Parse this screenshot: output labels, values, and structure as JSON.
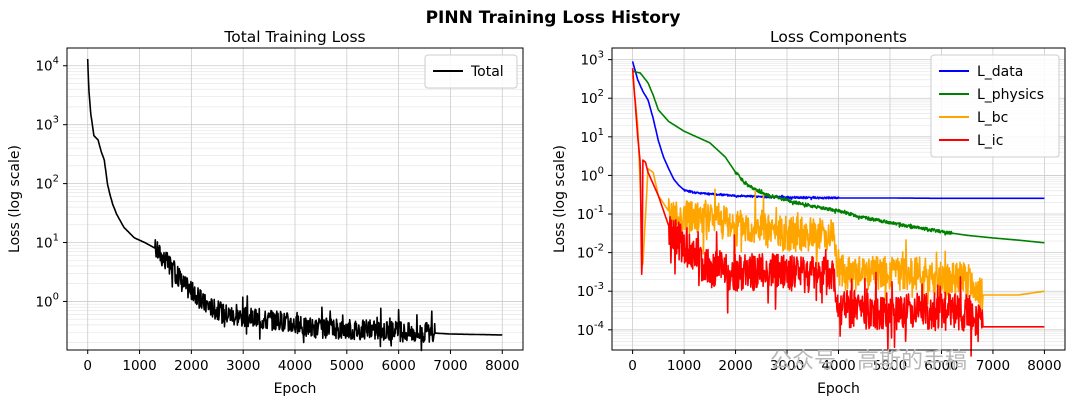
{
  "suptitle": "PINN Training Loss History",
  "watermark": "公众号 · 高斯的手稿",
  "chart_data": [
    {
      "type": "line",
      "title": "Total Training Loss",
      "xlabel": "Epoch",
      "ylabel": "Loss (log scale)",
      "yscale": "log",
      "xlim": [
        -400,
        8400
      ],
      "ylim": [
        0.15,
        20000
      ],
      "xticks": [
        0,
        1000,
        2000,
        3000,
        4000,
        5000,
        6000,
        7000,
        8000
      ],
      "yticks": [
        1,
        10,
        100,
        1000,
        10000
      ],
      "grid": true,
      "legend_position": "upper right",
      "series": [
        {
          "name": "Total",
          "color": "#000000",
          "x": [
            0,
            20,
            60,
            120,
            200,
            260,
            320,
            380,
            420,
            480,
            560,
            700,
            900,
            1100,
            1300,
            1500,
            1700,
            1850,
            2000,
            2200,
            2400,
            2600,
            2800,
            3000,
            3300,
            3600,
            3900,
            4100,
            4500,
            5000,
            5500,
            6000,
            6700,
            7000,
            7500,
            8000
          ],
          "y": [
            13000,
            4000,
            1500,
            650,
            550,
            350,
            250,
            100,
            70,
            45,
            30,
            18,
            12,
            10,
            8,
            5,
            3,
            2,
            1.5,
            1.0,
            0.8,
            0.65,
            0.6,
            0.55,
            0.5,
            0.48,
            0.45,
            0.37,
            0.35,
            0.34,
            0.33,
            0.31,
            0.29,
            0.28,
            0.275,
            0.27
          ],
          "noise": 0.35,
          "noise_range": [
            1300,
            6700
          ]
        }
      ]
    },
    {
      "type": "line",
      "title": "Loss Components",
      "xlabel": "Epoch",
      "ylabel": "Loss (log scale)",
      "yscale": "log",
      "xlim": [
        -400,
        8400
      ],
      "ylim": [
        3e-05,
        2000
      ],
      "xticks": [
        0,
        1000,
        2000,
        3000,
        4000,
        5000,
        6000,
        7000,
        8000
      ],
      "yticks": [
        0.0001,
        0.001,
        0.01,
        0.1,
        1,
        10,
        100,
        1000
      ],
      "grid": true,
      "legend_position": "upper right",
      "series": [
        {
          "name": "L_data",
          "color": "#0000ff",
          "x": [
            0,
            100,
            200,
            300,
            400,
            500,
            600,
            700,
            800,
            900,
            1000,
            1200,
            1500,
            2000,
            2500,
            3000,
            4000,
            5000,
            6000,
            7000,
            8000
          ],
          "y": [
            900,
            300,
            150,
            90,
            30,
            8,
            3,
            1.5,
            0.8,
            0.55,
            0.42,
            0.36,
            0.33,
            0.3,
            0.28,
            0.27,
            0.26,
            0.26,
            0.255,
            0.255,
            0.255
          ],
          "noise": 0.05,
          "noise_range": [
            1000,
            4000
          ]
        },
        {
          "name": "L_physics",
          "color": "#008000",
          "x": [
            0,
            150,
            300,
            400,
            500,
            700,
            1000,
            1500,
            1800,
            2000,
            2200,
            2500,
            3000,
            3500,
            4000,
            4500,
            5000,
            5500,
            6000,
            6500,
            7000,
            7500,
            8000
          ],
          "y": [
            500,
            450,
            250,
            120,
            50,
            25,
            14,
            7,
            3,
            1.2,
            0.6,
            0.35,
            0.22,
            0.16,
            0.12,
            0.08,
            0.06,
            0.045,
            0.035,
            0.028,
            0.024,
            0.021,
            0.018
          ],
          "noise": 0.08,
          "noise_range": [
            2000,
            6200
          ]
        },
        {
          "name": "L_bc",
          "color": "#ffa500",
          "x": [
            0,
            100,
            150,
            200,
            300,
            400,
            500,
            700,
            800,
            1000,
            1500,
            2000,
            2500,
            3000,
            3500,
            3900,
            4000,
            4500,
            5000,
            5500,
            6000,
            6500,
            6800,
            7000,
            7500,
            8000
          ],
          "y": [
            400,
            20,
            0.5,
            0.005,
            1.5,
            1.2,
            0.3,
            0.12,
            0.08,
            0.09,
            0.08,
            0.05,
            0.04,
            0.03,
            0.03,
            0.03,
            0.003,
            0.003,
            0.003,
            0.003,
            0.002,
            0.002,
            0.0008,
            0.0008,
            0.0008,
            0.001
          ],
          "noise": 0.9,
          "noise_range": [
            700,
            6800
          ]
        },
        {
          "name": "L_ic",
          "color": "#ff0000",
          "x": [
            0,
            100,
            150,
            180,
            200,
            250,
            300,
            400,
            500,
            700,
            900,
            1200,
            1500,
            2000,
            2500,
            3000,
            3500,
            3900,
            4000,
            4500,
            5000,
            5500,
            6000,
            6500,
            6800,
            7000,
            7500,
            8000
          ],
          "y": [
            600,
            10,
            2,
            0.001,
            2.5,
            2.2,
            1.2,
            0.6,
            0.3,
            0.05,
            0.02,
            0.008,
            0.004,
            0.003,
            0.003,
            0.003,
            0.0025,
            0.0025,
            0.0004,
            0.0003,
            0.0003,
            0.0003,
            0.0003,
            0.0003,
            0.00012,
            0.00012,
            0.00012,
            0.00012
          ],
          "noise": 1.0,
          "noise_range": [
            700,
            6800
          ]
        }
      ]
    }
  ]
}
